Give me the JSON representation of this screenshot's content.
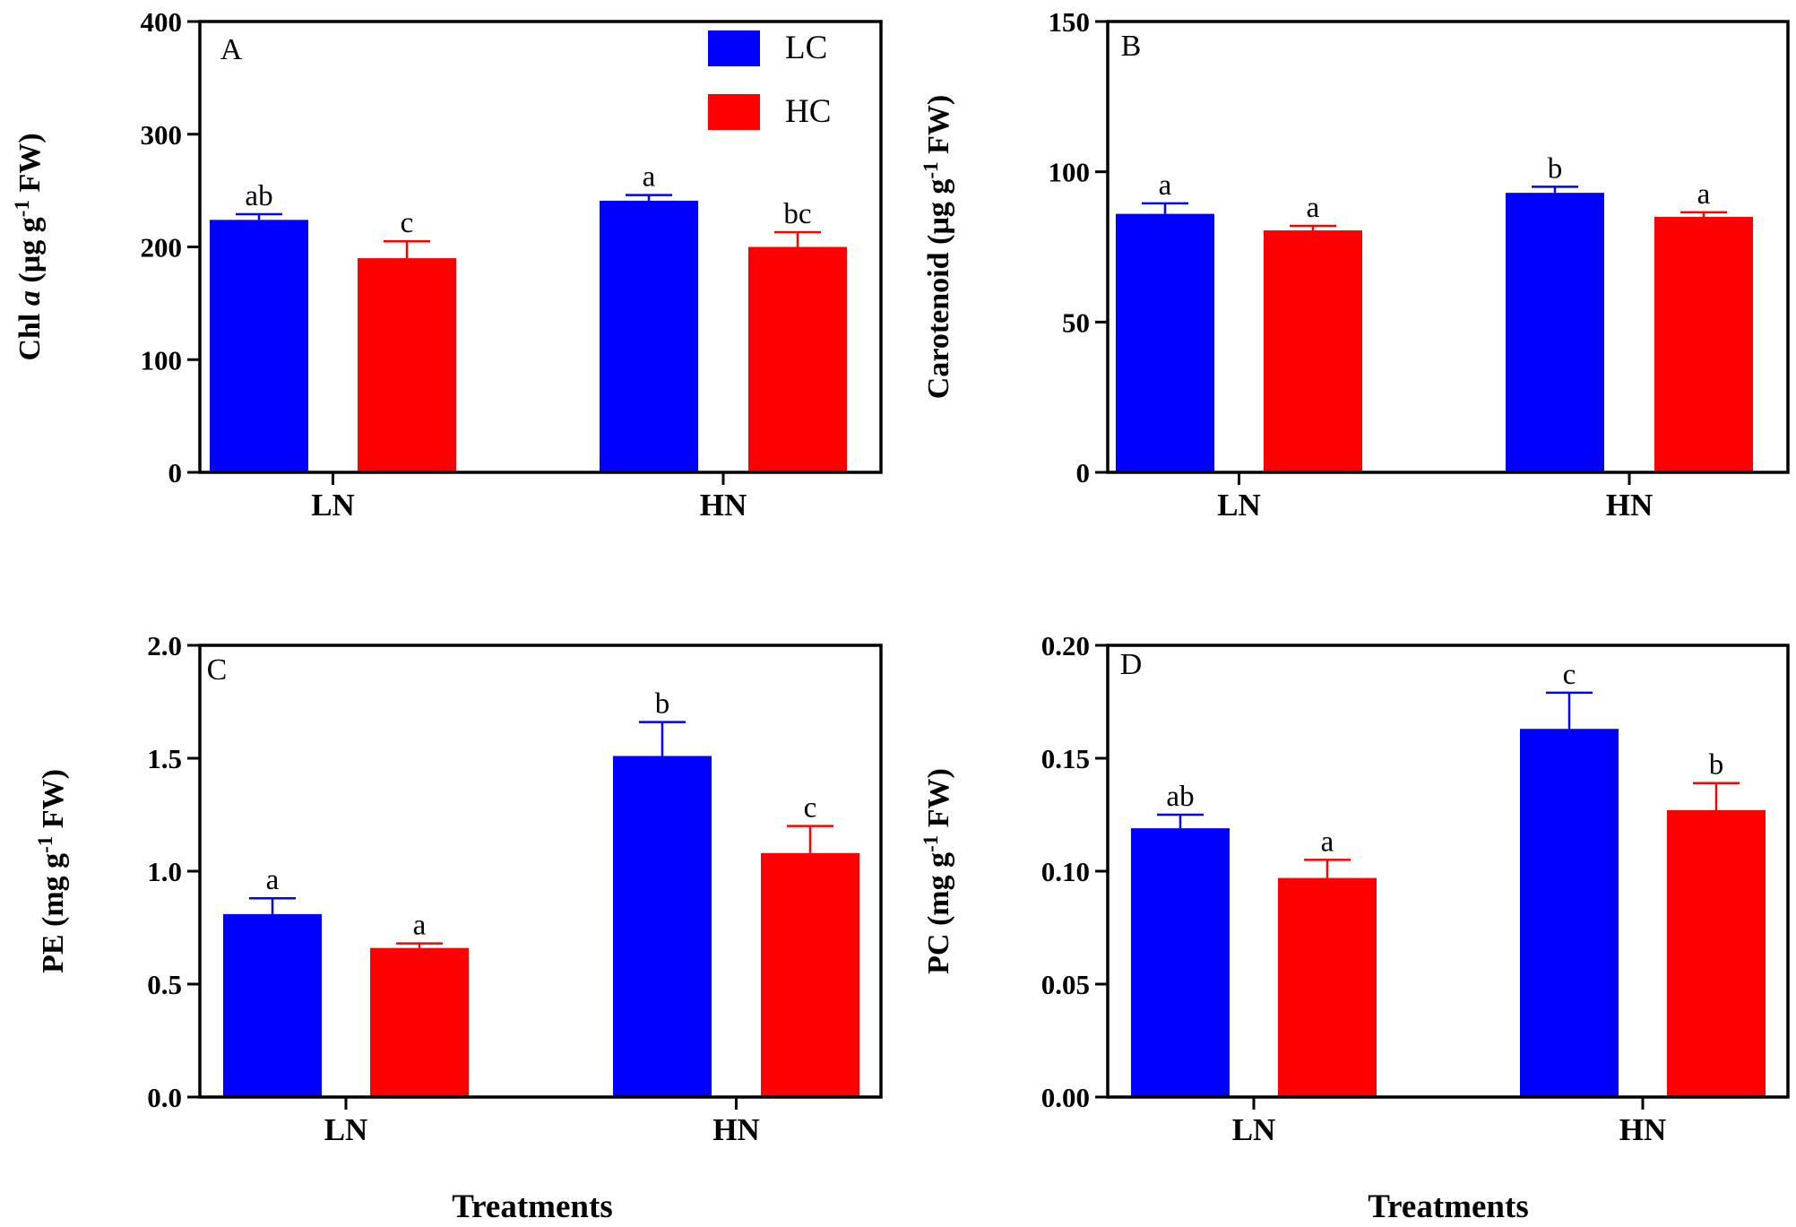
{
  "colors": {
    "LC": "#0000ff",
    "HC": "#ff0000",
    "axis": "#000000"
  },
  "legend": {
    "items": [
      {
        "label": "LC",
        "color": "#0000ff"
      },
      {
        "label": "HC",
        "color": "#ff0000"
      }
    ],
    "placement": "top-right of panel A"
  },
  "x_axis_title": "Treatments",
  "chart_data": [
    {
      "type": "bar",
      "panel_label": "A",
      "ylabel_parts": {
        "pre": "Chl ",
        "ital": "a",
        "mid": " (µg g",
        "sup": "-1",
        "post": " FW)"
      },
      "categories": [
        "LN",
        "HN"
      ],
      "ylim": [
        0,
        400
      ],
      "ticks": [
        "0",
        "100",
        "200",
        "300",
        "400"
      ],
      "series": [
        {
          "name": "LC",
          "values": [
            224,
            241
          ],
          "errors": [
            5,
            5
          ],
          "labels": [
            "ab",
            "a"
          ]
        },
        {
          "name": "HC",
          "values": [
            190,
            200
          ],
          "errors": [
            15,
            13
          ],
          "labels": [
            "c",
            "bc"
          ]
        }
      ]
    },
    {
      "type": "bar",
      "panel_label": "B",
      "ylabel_parts": {
        "pre": "Carotenoid (µg g",
        "ital": "",
        "mid": "",
        "sup": "-1",
        "post": " FW)"
      },
      "categories": [
        "LN",
        "HN"
      ],
      "ylim": [
        0,
        150
      ],
      "ticks": [
        "0",
        "50",
        "100",
        "150"
      ],
      "series": [
        {
          "name": "LC",
          "values": [
            86,
            93
          ],
          "errors": [
            3.5,
            2
          ],
          "labels": [
            "a",
            "b"
          ]
        },
        {
          "name": "HC",
          "values": [
            80.5,
            85
          ],
          "errors": [
            1.5,
            1.5
          ],
          "labels": [
            "a",
            "a"
          ]
        }
      ]
    },
    {
      "type": "bar",
      "panel_label": "C",
      "ylabel_parts": {
        "pre": "PE (mg g",
        "ital": "",
        "mid": "",
        "sup": "-1",
        "post": " FW)"
      },
      "categories": [
        "LN",
        "HN"
      ],
      "ylim": [
        0,
        2.0
      ],
      "ticks": [
        "0.0",
        "0.5",
        "1.0",
        "1.5",
        "2.0"
      ],
      "series": [
        {
          "name": "LC",
          "values": [
            0.81,
            1.51
          ],
          "errors": [
            0.07,
            0.15
          ],
          "labels": [
            "a",
            "b"
          ]
        },
        {
          "name": "HC",
          "values": [
            0.66,
            1.08
          ],
          "errors": [
            0.02,
            0.12
          ],
          "labels": [
            "a",
            "c"
          ]
        }
      ]
    },
    {
      "type": "bar",
      "panel_label": "D",
      "ylabel_parts": {
        "pre": "PC (mg g",
        "ital": "",
        "mid": "",
        "sup": "-1",
        "post": " FW)"
      },
      "categories": [
        "LN",
        "HN"
      ],
      "ylim": [
        0,
        0.2
      ],
      "ticks": [
        "0.00",
        "0.05",
        "0.10",
        "0.15",
        "0.20"
      ],
      "series": [
        {
          "name": "LC",
          "values": [
            0.119,
            0.163
          ],
          "errors": [
            0.006,
            0.016
          ],
          "labels": [
            "ab",
            "c"
          ]
        },
        {
          "name": "HC",
          "values": [
            0.097,
            0.127
          ],
          "errors": [
            0.008,
            0.012
          ],
          "labels": [
            "a",
            "b"
          ]
        }
      ]
    }
  ]
}
